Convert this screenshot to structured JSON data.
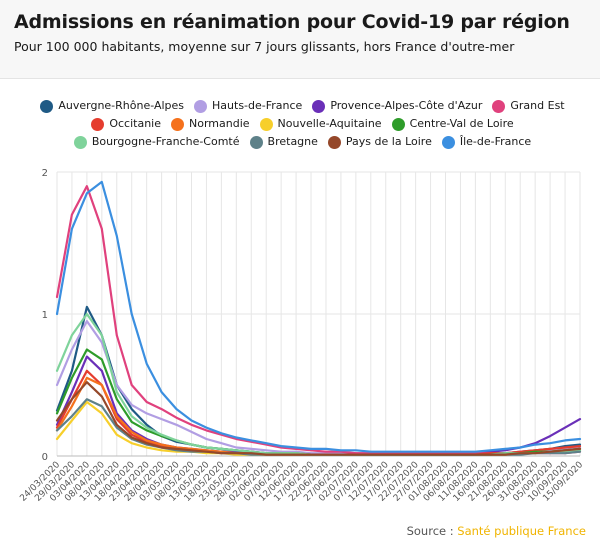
{
  "title": "Admissions en réanimation pour Covid-19 par région",
  "subtitle": "Pour 100 000 habitants, moyenne sur 7 jours glissants, hors France d'outre-mer",
  "source": {
    "label": "Source : ",
    "name": "Santé publique France"
  },
  "chart_data": {
    "type": "line",
    "title": "Admissions en réanimation pour Covid-19 par région",
    "xlabel": "",
    "ylabel": "",
    "ylim": [
      0,
      2
    ],
    "yticks": [
      "0",
      "1",
      "2"
    ],
    "grid": true,
    "legend_position": "top",
    "x": [
      "24/03/2020",
      "29/03/2020",
      "03/04/2020",
      "08/04/2020",
      "13/04/2020",
      "18/04/2020",
      "23/04/2020",
      "28/04/2020",
      "03/05/2020",
      "08/05/2020",
      "13/05/2020",
      "18/05/2020",
      "23/05/2020",
      "28/05/2020",
      "02/06/2020",
      "07/06/2020",
      "12/06/2020",
      "17/06/2020",
      "22/06/2020",
      "27/06/2020",
      "02/07/2020",
      "07/07/2020",
      "12/07/2020",
      "17/07/2020",
      "22/07/2020",
      "27/07/2020",
      "01/08/2020",
      "06/08/2020",
      "11/08/2020",
      "16/08/2020",
      "21/08/2020",
      "26/08/2020",
      "31/08/2020",
      "05/09/2020",
      "10/09/2020",
      "15/09/2020"
    ],
    "series": [
      {
        "name": "Auvergne-Rhône-Alpes",
        "color": "#1f5a85",
        "values": [
          0.32,
          0.6,
          1.05,
          0.85,
          0.5,
          0.33,
          0.22,
          0.14,
          0.1,
          0.08,
          0.06,
          0.05,
          0.04,
          0.03,
          0.02,
          0.02,
          0.01,
          0.01,
          0.01,
          0.01,
          0.01,
          0.01,
          0.01,
          0.01,
          0.01,
          0.01,
          0.01,
          0.01,
          0.01,
          0.01,
          0.02,
          0.03,
          0.04,
          0.05,
          0.07,
          0.08
        ]
      },
      {
        "name": "Hauts-de-France",
        "color": "#b19ee3",
        "values": [
          0.5,
          0.75,
          0.95,
          0.8,
          0.5,
          0.36,
          0.3,
          0.26,
          0.22,
          0.17,
          0.12,
          0.09,
          0.06,
          0.05,
          0.04,
          0.03,
          0.03,
          0.02,
          0.02,
          0.02,
          0.02,
          0.02,
          0.02,
          0.02,
          0.02,
          0.02,
          0.02,
          0.02,
          0.02,
          0.02,
          0.02,
          0.03,
          0.03,
          0.04,
          0.05,
          0.06
        ]
      },
      {
        "name": "Provence-Alpes-Côte d'Azur",
        "color": "#6a2fb8",
        "values": [
          0.22,
          0.45,
          0.7,
          0.6,
          0.3,
          0.18,
          0.12,
          0.08,
          0.06,
          0.05,
          0.04,
          0.03,
          0.03,
          0.02,
          0.02,
          0.02,
          0.01,
          0.01,
          0.01,
          0.01,
          0.01,
          0.01,
          0.01,
          0.01,
          0.01,
          0.01,
          0.01,
          0.01,
          0.02,
          0.03,
          0.04,
          0.06,
          0.09,
          0.14,
          0.2,
          0.26
        ]
      },
      {
        "name": "Grand Est",
        "color": "#e0417d",
        "values": [
          1.12,
          1.7,
          1.9,
          1.6,
          0.85,
          0.5,
          0.38,
          0.33,
          0.27,
          0.22,
          0.18,
          0.15,
          0.12,
          0.1,
          0.08,
          0.06,
          0.05,
          0.04,
          0.03,
          0.03,
          0.02,
          0.02,
          0.02,
          0.02,
          0.02,
          0.02,
          0.02,
          0.02,
          0.02,
          0.02,
          0.02,
          0.02,
          0.02,
          0.02,
          0.02,
          0.03
        ]
      },
      {
        "name": "Occitanie",
        "color": "#e53d2f",
        "values": [
          0.2,
          0.4,
          0.6,
          0.5,
          0.26,
          0.15,
          0.1,
          0.07,
          0.05,
          0.04,
          0.03,
          0.02,
          0.02,
          0.02,
          0.01,
          0.01,
          0.01,
          0.01,
          0.01,
          0.01,
          0.01,
          0.01,
          0.01,
          0.01,
          0.01,
          0.01,
          0.01,
          0.01,
          0.01,
          0.02,
          0.02,
          0.03,
          0.04,
          0.05,
          0.06,
          0.07
        ]
      },
      {
        "name": "Normandie",
        "color": "#f5711c",
        "values": [
          0.18,
          0.35,
          0.55,
          0.5,
          0.28,
          0.17,
          0.11,
          0.08,
          0.06,
          0.05,
          0.04,
          0.03,
          0.02,
          0.02,
          0.02,
          0.01,
          0.01,
          0.01,
          0.01,
          0.01,
          0.01,
          0.01,
          0.01,
          0.01,
          0.01,
          0.01,
          0.01,
          0.01,
          0.01,
          0.01,
          0.01,
          0.02,
          0.02,
          0.03,
          0.04,
          0.05
        ]
      },
      {
        "name": "Nouvelle-Aquitaine",
        "color": "#f7cf2b",
        "values": [
          0.12,
          0.25,
          0.38,
          0.3,
          0.15,
          0.09,
          0.06,
          0.04,
          0.03,
          0.03,
          0.02,
          0.02,
          0.01,
          0.01,
          0.01,
          0.01,
          0.01,
          0.01,
          0.01,
          0.01,
          0.01,
          0.01,
          0.01,
          0.01,
          0.01,
          0.01,
          0.01,
          0.01,
          0.01,
          0.01,
          0.01,
          0.02,
          0.02,
          0.03,
          0.03,
          0.04
        ]
      },
      {
        "name": "Centre-Val de Loire",
        "color": "#2e9c2a",
        "values": [
          0.3,
          0.55,
          0.75,
          0.68,
          0.4,
          0.24,
          0.18,
          0.14,
          0.11,
          0.08,
          0.06,
          0.05,
          0.04,
          0.03,
          0.02,
          0.02,
          0.02,
          0.01,
          0.01,
          0.01,
          0.01,
          0.01,
          0.01,
          0.01,
          0.01,
          0.01,
          0.01,
          0.01,
          0.01,
          0.01,
          0.02,
          0.02,
          0.03,
          0.03,
          0.04,
          0.05
        ]
      },
      {
        "name": "Bourgogne-Franche-Comté",
        "color": "#7fd39b",
        "values": [
          0.6,
          0.85,
          1.0,
          0.85,
          0.45,
          0.28,
          0.2,
          0.15,
          0.11,
          0.08,
          0.06,
          0.05,
          0.04,
          0.03,
          0.02,
          0.02,
          0.02,
          0.01,
          0.01,
          0.01,
          0.01,
          0.01,
          0.01,
          0.01,
          0.01,
          0.01,
          0.01,
          0.01,
          0.01,
          0.01,
          0.02,
          0.02,
          0.02,
          0.03,
          0.03,
          0.04
        ]
      },
      {
        "name": "Bretagne",
        "color": "#5e8189",
        "values": [
          0.18,
          0.28,
          0.4,
          0.35,
          0.2,
          0.12,
          0.08,
          0.06,
          0.04,
          0.03,
          0.03,
          0.02,
          0.02,
          0.01,
          0.01,
          0.01,
          0.01,
          0.01,
          0.01,
          0.01,
          0.01,
          0.01,
          0.01,
          0.01,
          0.01,
          0.01,
          0.01,
          0.01,
          0.01,
          0.01,
          0.01,
          0.01,
          0.02,
          0.02,
          0.02,
          0.03
        ]
      },
      {
        "name": "Pays de la Loire",
        "color": "#95482a",
        "values": [
          0.25,
          0.4,
          0.52,
          0.42,
          0.22,
          0.13,
          0.09,
          0.06,
          0.05,
          0.04,
          0.03,
          0.02,
          0.02,
          0.02,
          0.01,
          0.01,
          0.01,
          0.01,
          0.01,
          0.01,
          0.01,
          0.01,
          0.01,
          0.01,
          0.01,
          0.01,
          0.01,
          0.01,
          0.01,
          0.01,
          0.01,
          0.02,
          0.02,
          0.03,
          0.04,
          0.05
        ]
      },
      {
        "name": "Île-de-France",
        "color": "#3b8fe0",
        "values": [
          1.0,
          1.6,
          1.85,
          1.93,
          1.55,
          1.0,
          0.65,
          0.45,
          0.33,
          0.25,
          0.2,
          0.16,
          0.13,
          0.11,
          0.09,
          0.07,
          0.06,
          0.05,
          0.05,
          0.04,
          0.04,
          0.03,
          0.03,
          0.03,
          0.03,
          0.03,
          0.03,
          0.03,
          0.03,
          0.04,
          0.05,
          0.06,
          0.08,
          0.09,
          0.11,
          0.12
        ]
      }
    ]
  }
}
